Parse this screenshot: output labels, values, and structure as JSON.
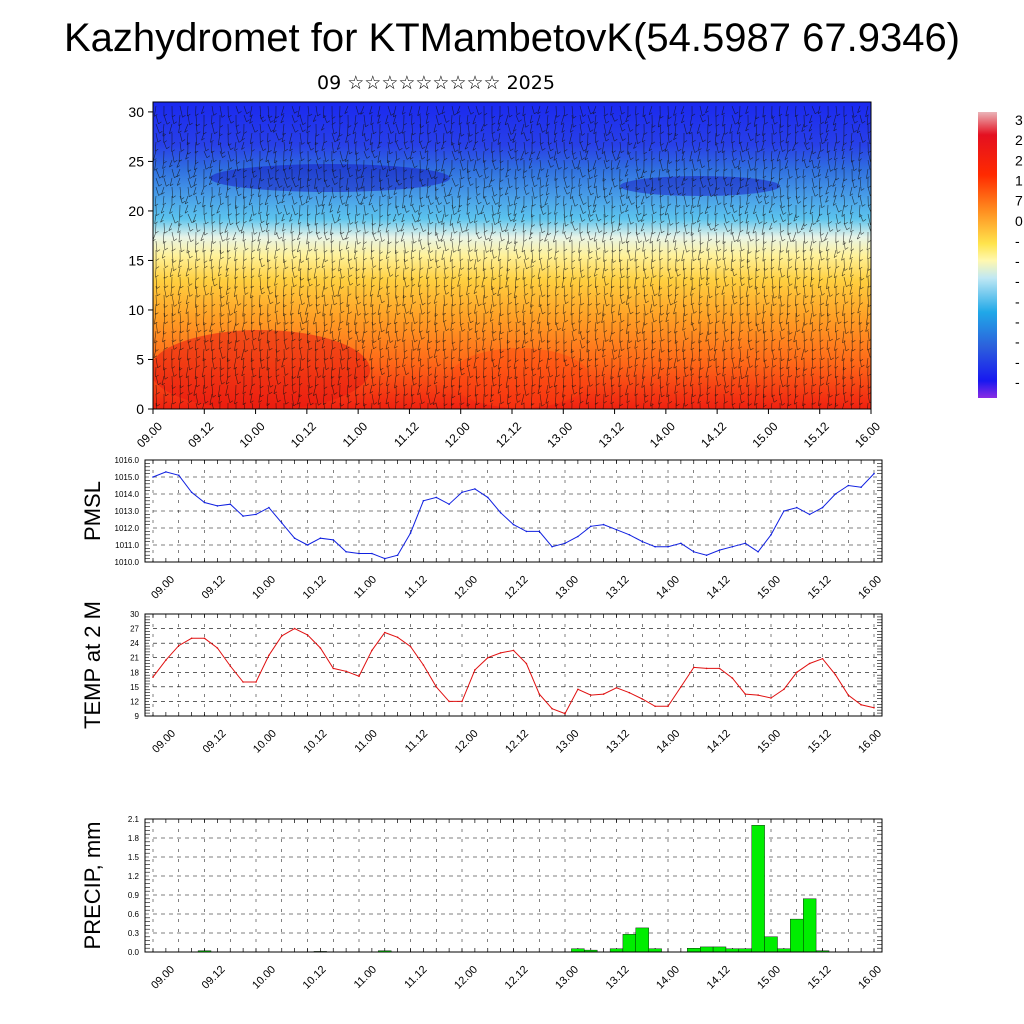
{
  "header": {
    "title": "Kazhydromet for KTMambetovK(54.5987 67.9346)",
    "subtitle": "09 ☆☆☆☆☆☆☆☆☆ 2025"
  },
  "chart_data": [
    {
      "type": "heatmap",
      "x_tick_labels": [
        "09.00",
        "09.12",
        "10.00",
        "10.12",
        "11.00",
        "11.12",
        "12.00",
        "12.12",
        "13.00",
        "13.12",
        "14.00",
        "14.12",
        "15.00",
        "15.12",
        "16.00"
      ],
      "y_ticks": [
        0,
        5,
        10,
        15,
        20,
        25,
        30
      ],
      "ylim": [
        0,
        31
      ],
      "colorbar_labels": [
        "3",
        "2",
        "2",
        "1",
        "7",
        "0",
        "-",
        "-",
        "-",
        "-",
        "-",
        "-",
        "-",
        "-"
      ],
      "colors": [
        "#e8b0b4",
        "#e00010",
        "#ff4800",
        "#ff9a1c",
        "#ffe24a",
        "#ffff9e",
        "#c8ecf4",
        "#28b4e8",
        "#2c6cd8",
        "#1a28f0",
        "#8a2ce4"
      ],
      "overlay": "wind barbs"
    },
    {
      "type": "line",
      "ylabel": "PMSL",
      "y_tick_labels": [
        "1016.0",
        "1015.0",
        "1014.0",
        "1013.0",
        "1012.0",
        "1011.0",
        "1010.0"
      ],
      "ylim": [
        1010,
        1016
      ],
      "x_tick_labels": [
        "09.00",
        "09.12",
        "10.00",
        "10.12",
        "11.00",
        "11.12",
        "12.00",
        "12.12",
        "13.00",
        "13.12",
        "14.00",
        "14.12",
        "15.00",
        "15.12",
        "16.00"
      ],
      "color": "#1020e0",
      "values": [
        1015.0,
        1015.3,
        1015.1,
        1014.1,
        1013.5,
        1013.3,
        1013.4,
        1012.7,
        1012.8,
        1013.2,
        1012.3,
        1011.4,
        1011.0,
        1011.4,
        1011.3,
        1010.6,
        1010.5,
        1010.5,
        1010.2,
        1010.4,
        1011.7,
        1013.6,
        1013.8,
        1013.4,
        1014.1,
        1014.3,
        1013.8,
        1012.9,
        1012.2,
        1011.8,
        1011.8,
        1010.9,
        1011.1,
        1011.5,
        1012.1,
        1012.2,
        1011.9,
        1011.6,
        1011.2,
        1010.9,
        1010.9,
        1011.1,
        1010.6,
        1010.4,
        1010.7,
        1010.9,
        1011.1,
        1010.6,
        1011.6,
        1013.0,
        1013.2,
        1012.8,
        1013.2,
        1014.0,
        1014.5,
        1014.4,
        1015.2
      ]
    },
    {
      "type": "line",
      "ylabel": "TEMP at 2 M",
      "y_tick_labels": [
        "30",
        "27",
        "24",
        "21",
        "18",
        "15",
        "12",
        "9"
      ],
      "ylim": [
        9,
        30
      ],
      "x_tick_labels": [
        "09.00",
        "09.12",
        "10.00",
        "10.12",
        "11.00",
        "11.12",
        "12.00",
        "12.12",
        "13.00",
        "13.12",
        "14.00",
        "14.12",
        "15.00",
        "15.12",
        "16.00"
      ],
      "color": "#e01010",
      "values": [
        17,
        20.5,
        23.5,
        25,
        25,
        23,
        19.3,
        16,
        16,
        21.5,
        25.5,
        27,
        25.7,
        23,
        18.8,
        18.2,
        17.2,
        22.5,
        26.2,
        25.2,
        23.3,
        19.5,
        15,
        12,
        12,
        18.5,
        21,
        22,
        22.5,
        19.8,
        13.5,
        10.5,
        9.5,
        14.5,
        13.3,
        13.5,
        14.8,
        13.8,
        12.5,
        11,
        11,
        15,
        19,
        18.8,
        18.8,
        16.8,
        13.5,
        13.3,
        12.7,
        14.5,
        18,
        19.8,
        20.8,
        17.5,
        13.3,
        11.3,
        10.7
      ]
    },
    {
      "type": "bar",
      "ylabel": "PRECIP, mm",
      "y_tick_labels": [
        "2.1",
        "1.8",
        "1.5",
        "1.2",
        "0.9",
        "0.6",
        "0.3",
        "0.0"
      ],
      "ylim": [
        0,
        2.1
      ],
      "x_tick_labels": [
        "09.00",
        "09.12",
        "10.00",
        "10.12",
        "11.00",
        "11.12",
        "12.00",
        "12.12",
        "13.00",
        "13.12",
        "14.00",
        "14.12",
        "15.00",
        "15.12",
        "16.00"
      ],
      "color": "#00ee00",
      "values": [
        0,
        0,
        0,
        0,
        0.02,
        0,
        0,
        0,
        0,
        0,
        0,
        0,
        0,
        0.01,
        0,
        0,
        0,
        0,
        0.02,
        0,
        0,
        0,
        0,
        0,
        0,
        0,
        0,
        0,
        0,
        0,
        0,
        0,
        0,
        0.05,
        0.03,
        0,
        0.05,
        0.28,
        0.38,
        0.05,
        0,
        0,
        0.06,
        0.08,
        0.08,
        0.05,
        0.05,
        2.0,
        0.24,
        0.05,
        0.52,
        0.84,
        0.02,
        0,
        0,
        0,
        0
      ]
    }
  ]
}
